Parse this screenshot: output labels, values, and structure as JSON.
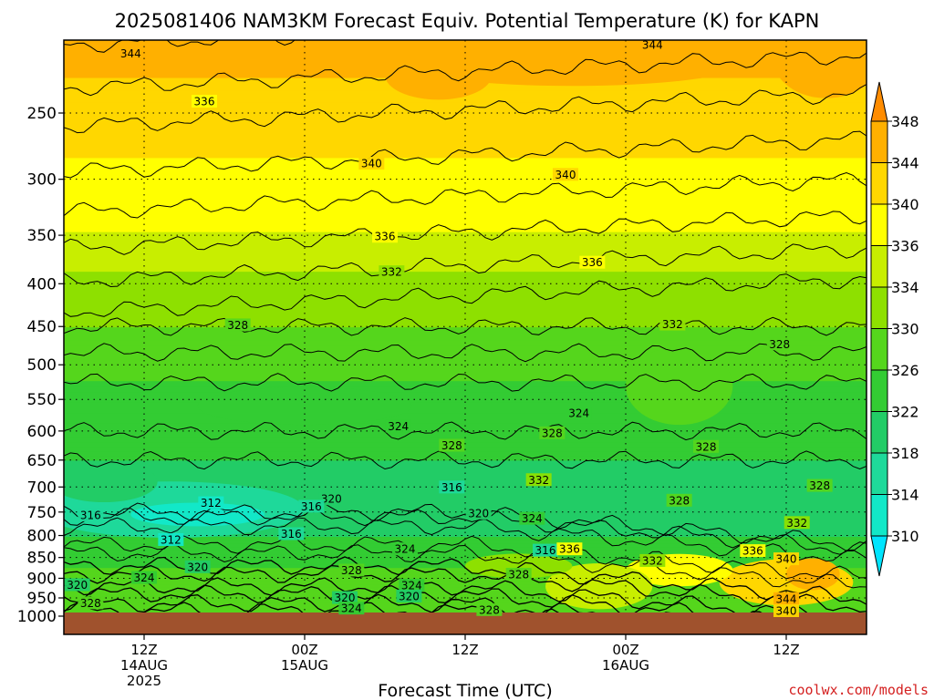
{
  "chart_data": {
    "type": "heatmap",
    "title": "2025081406 NAM3KM Forecast Equiv. Potential Temperature (K) for KAPN",
    "xlabel": "Forecast Time (UTC)",
    "ylabel": "",
    "y_scale": "log-pressure",
    "ylim": [
      1000,
      200
    ],
    "y_ticks": [
      250,
      300,
      350,
      400,
      450,
      500,
      550,
      600,
      650,
      700,
      750,
      800,
      850,
      900,
      950,
      1000
    ],
    "x_range_hours": [
      6,
      66
    ],
    "x_ticks": [
      {
        "hour": 12,
        "label": [
          "12Z",
          "14AUG",
          "2025"
        ]
      },
      {
        "hour": 24,
        "label": [
          "00Z",
          "15AUG"
        ]
      },
      {
        "hour": 36,
        "label": [
          "12Z"
        ]
      },
      {
        "hour": 48,
        "label": [
          "00Z",
          "16AUG"
        ]
      },
      {
        "hour": 60,
        "label": [
          "12Z"
        ]
      }
    ],
    "colorbar": {
      "unit": "K",
      "levels": [
        310,
        314,
        318,
        322,
        326,
        330,
        334,
        336,
        340,
        344,
        348
      ],
      "colors": [
        "#00e5ff",
        "#12e8c8",
        "#1ed99a",
        "#22cc66",
        "#33cc33",
        "#55d61c",
        "#8ee000",
        "#c8ee00",
        "#ffff00",
        "#ffd700",
        "#ffb000",
        "#ff8c00"
      ]
    },
    "ground_color": "#a0522d",
    "contour_labels": [
      {
        "value": "344",
        "hour": 11,
        "p": 212
      },
      {
        "value": "344",
        "hour": 50,
        "p": 207
      },
      {
        "value": "336",
        "hour": 16.5,
        "p": 242
      },
      {
        "value": "340",
        "hour": 29,
        "p": 287
      },
      {
        "value": "340",
        "hour": 43.5,
        "p": 296
      },
      {
        "value": "336",
        "hour": 30,
        "p": 351
      },
      {
        "value": "336",
        "hour": 45.5,
        "p": 377
      },
      {
        "value": "332",
        "hour": 30.5,
        "p": 387
      },
      {
        "value": "328",
        "hour": 19,
        "p": 448
      },
      {
        "value": "332",
        "hour": 51.5,
        "p": 447
      },
      {
        "value": "328",
        "hour": 59.5,
        "p": 472
      },
      {
        "value": "324",
        "hour": 44.5,
        "p": 571
      },
      {
        "value": "324",
        "hour": 31,
        "p": 592
      },
      {
        "value": "328",
        "hour": 42.5,
        "p": 603
      },
      {
        "value": "328",
        "hour": 35,
        "p": 624
      },
      {
        "value": "328",
        "hour": 54,
        "p": 626
      },
      {
        "value": "332",
        "hour": 41.5,
        "p": 686
      },
      {
        "value": "316",
        "hour": 35,
        "p": 700
      },
      {
        "value": "328",
        "hour": 62.5,
        "p": 697
      },
      {
        "value": "320",
        "hour": 26,
        "p": 723
      },
      {
        "value": "312",
        "hour": 17,
        "p": 731
      },
      {
        "value": "316",
        "hour": 24.5,
        "p": 738
      },
      {
        "value": "328",
        "hour": 52,
        "p": 726
      },
      {
        "value": "320",
        "hour": 37,
        "p": 752
      },
      {
        "value": "324",
        "hour": 41,
        "p": 763
      },
      {
        "value": "316",
        "hour": 8,
        "p": 756
      },
      {
        "value": "332",
        "hour": 60.8,
        "p": 772
      },
      {
        "value": "316",
        "hour": 23,
        "p": 796
      },
      {
        "value": "312",
        "hour": 14,
        "p": 809
      },
      {
        "value": "316",
        "hour": 42,
        "p": 833
      },
      {
        "value": "336",
        "hour": 43.8,
        "p": 830
      },
      {
        "value": "324",
        "hour": 31.5,
        "p": 830
      },
      {
        "value": "336",
        "hour": 57.5,
        "p": 834
      },
      {
        "value": "332",
        "hour": 50,
        "p": 857
      },
      {
        "value": "340",
        "hour": 60,
        "p": 853
      },
      {
        "value": "320",
        "hour": 16,
        "p": 872
      },
      {
        "value": "328",
        "hour": 27.5,
        "p": 880
      },
      {
        "value": "328",
        "hour": 40,
        "p": 890
      },
      {
        "value": "324",
        "hour": 12,
        "p": 898
      },
      {
        "value": "320",
        "hour": 7,
        "p": 916
      },
      {
        "value": "324",
        "hour": 32,
        "p": 917
      },
      {
        "value": "320",
        "hour": 27,
        "p": 949
      },
      {
        "value": "320",
        "hour": 31.8,
        "p": 945
      },
      {
        "value": "344",
        "hour": 60,
        "p": 952
      },
      {
        "value": "328",
        "hour": 8,
        "p": 963
      },
      {
        "value": "324",
        "hour": 27.5,
        "p": 977
      },
      {
        "value": "328",
        "hour": 37.8,
        "p": 981
      },
      {
        "value": "340",
        "hour": 60,
        "p": 984
      }
    ]
  },
  "credit": "coolwx.com/models"
}
